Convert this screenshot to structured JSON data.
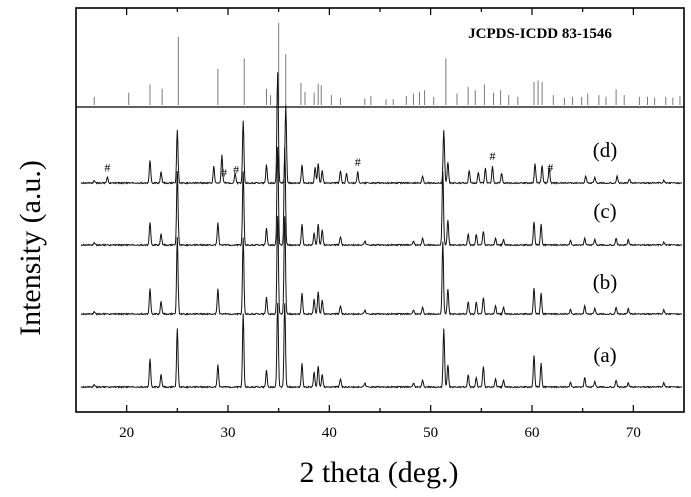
{
  "chart_data": {
    "type": "line",
    "xlabel": "2 theta (deg.)",
    "ylabel": "Intensity (a.u.)",
    "xlim": [
      15,
      75
    ],
    "x_ticks": [
      "20",
      "30",
      "40",
      "50",
      "60",
      "70"
    ],
    "grid": false,
    "reference": {
      "label": "JCPDS-ICDD 83-1546",
      "lines": [
        {
          "x": 16.8,
          "h": 0.1
        },
        {
          "x": 20.2,
          "h": 0.15
        },
        {
          "x": 22.3,
          "h": 0.25
        },
        {
          "x": 23.5,
          "h": 0.2
        },
        {
          "x": 25.1,
          "h": 0.83
        },
        {
          "x": 29.0,
          "h": 0.44
        },
        {
          "x": 31.6,
          "h": 0.57
        },
        {
          "x": 33.8,
          "h": 0.2
        },
        {
          "x": 34.2,
          "h": 0.12
        },
        {
          "x": 35.0,
          "h": 1.0
        },
        {
          "x": 35.7,
          "h": 0.62
        },
        {
          "x": 37.2,
          "h": 0.27
        },
        {
          "x": 37.6,
          "h": 0.16
        },
        {
          "x": 38.5,
          "h": 0.15
        },
        {
          "x": 38.9,
          "h": 0.26
        },
        {
          "x": 39.2,
          "h": 0.24
        },
        {
          "x": 40.2,
          "h": 0.12
        },
        {
          "x": 41.1,
          "h": 0.09
        },
        {
          "x": 43.5,
          "h": 0.08
        },
        {
          "x": 44.1,
          "h": 0.11
        },
        {
          "x": 45.6,
          "h": 0.07
        },
        {
          "x": 46.3,
          "h": 0.07
        },
        {
          "x": 47.6,
          "h": 0.11
        },
        {
          "x": 48.3,
          "h": 0.14
        },
        {
          "x": 48.9,
          "h": 0.16
        },
        {
          "x": 49.4,
          "h": 0.18
        },
        {
          "x": 50.3,
          "h": 0.1
        },
        {
          "x": 51.5,
          "h": 0.57
        },
        {
          "x": 52.6,
          "h": 0.14
        },
        {
          "x": 53.7,
          "h": 0.22
        },
        {
          "x": 54.4,
          "h": 0.18
        },
        {
          "x": 55.3,
          "h": 0.25
        },
        {
          "x": 56.2,
          "h": 0.15
        },
        {
          "x": 56.9,
          "h": 0.18
        },
        {
          "x": 57.7,
          "h": 0.12
        },
        {
          "x": 58.6,
          "h": 0.1
        },
        {
          "x": 60.2,
          "h": 0.28
        },
        {
          "x": 60.6,
          "h": 0.3
        },
        {
          "x": 61.0,
          "h": 0.28
        },
        {
          "x": 62.1,
          "h": 0.12
        },
        {
          "x": 63.2,
          "h": 0.09
        },
        {
          "x": 64.0,
          "h": 0.1
        },
        {
          "x": 64.9,
          "h": 0.1
        },
        {
          "x": 65.5,
          "h": 0.14
        },
        {
          "x": 66.6,
          "h": 0.12
        },
        {
          "x": 67.3,
          "h": 0.1
        },
        {
          "x": 68.3,
          "h": 0.19
        },
        {
          "x": 69.1,
          "h": 0.12
        },
        {
          "x": 70.6,
          "h": 0.1
        },
        {
          "x": 71.4,
          "h": 0.1
        },
        {
          "x": 72.1,
          "h": 0.09
        },
        {
          "x": 73.2,
          "h": 0.1
        },
        {
          "x": 73.9,
          "h": 0.09
        },
        {
          "x": 74.6,
          "h": 0.11
        }
      ]
    },
    "series": [
      {
        "name": "(a)",
        "peaks": [
          {
            "x": 16.8,
            "h": 0.02
          },
          {
            "x": 22.3,
            "h": 0.2
          },
          {
            "x": 23.4,
            "h": 0.09
          },
          {
            "x": 25.0,
            "h": 0.42
          },
          {
            "x": 29.0,
            "h": 0.16
          },
          {
            "x": 31.5,
            "h": 0.53
          },
          {
            "x": 33.8,
            "h": 0.12
          },
          {
            "x": 34.9,
            "h": 0.6
          },
          {
            "x": 35.6,
            "h": 0.6
          },
          {
            "x": 37.3,
            "h": 0.17
          },
          {
            "x": 38.5,
            "h": 0.11
          },
          {
            "x": 38.9,
            "h": 0.15
          },
          {
            "x": 39.3,
            "h": 0.09
          },
          {
            "x": 41.1,
            "h": 0.06
          },
          {
            "x": 43.5,
            "h": 0.03
          },
          {
            "x": 48.3,
            "h": 0.03
          },
          {
            "x": 49.2,
            "h": 0.05
          },
          {
            "x": 51.3,
            "h": 0.42
          },
          {
            "x": 51.7,
            "h": 0.16
          },
          {
            "x": 53.7,
            "h": 0.09
          },
          {
            "x": 54.5,
            "h": 0.07
          },
          {
            "x": 55.2,
            "h": 0.15
          },
          {
            "x": 56.4,
            "h": 0.06
          },
          {
            "x": 57.2,
            "h": 0.05
          },
          {
            "x": 60.2,
            "h": 0.23
          },
          {
            "x": 60.9,
            "h": 0.17
          },
          {
            "x": 63.8,
            "h": 0.03
          },
          {
            "x": 65.2,
            "h": 0.07
          },
          {
            "x": 66.2,
            "h": 0.04
          },
          {
            "x": 68.3,
            "h": 0.05
          },
          {
            "x": 69.5,
            "h": 0.03
          },
          {
            "x": 73.0,
            "h": 0.03
          }
        ]
      },
      {
        "name": "(b)",
        "peaks": [
          {
            "x": 16.8,
            "h": 0.02
          },
          {
            "x": 22.3,
            "h": 0.18
          },
          {
            "x": 23.4,
            "h": 0.09
          },
          {
            "x": 25.0,
            "h": 0.55
          },
          {
            "x": 29.0,
            "h": 0.18
          },
          {
            "x": 31.5,
            "h": 0.55
          },
          {
            "x": 33.8,
            "h": 0.12
          },
          {
            "x": 34.9,
            "h": 0.7
          },
          {
            "x": 35.6,
            "h": 0.7
          },
          {
            "x": 37.3,
            "h": 0.15
          },
          {
            "x": 38.5,
            "h": 0.11
          },
          {
            "x": 38.9,
            "h": 0.16
          },
          {
            "x": 39.3,
            "h": 0.1
          },
          {
            "x": 41.1,
            "h": 0.06
          },
          {
            "x": 43.5,
            "h": 0.03
          },
          {
            "x": 48.3,
            "h": 0.03
          },
          {
            "x": 49.2,
            "h": 0.05
          },
          {
            "x": 51.2,
            "h": 0.52
          },
          {
            "x": 51.7,
            "h": 0.18
          },
          {
            "x": 53.7,
            "h": 0.09
          },
          {
            "x": 54.5,
            "h": 0.09
          },
          {
            "x": 55.2,
            "h": 0.12
          },
          {
            "x": 56.4,
            "h": 0.06
          },
          {
            "x": 57.2,
            "h": 0.05
          },
          {
            "x": 60.2,
            "h": 0.19
          },
          {
            "x": 60.9,
            "h": 0.15
          },
          {
            "x": 63.8,
            "h": 0.03
          },
          {
            "x": 65.2,
            "h": 0.06
          },
          {
            "x": 66.2,
            "h": 0.04
          },
          {
            "x": 68.3,
            "h": 0.05
          },
          {
            "x": 69.5,
            "h": 0.04
          },
          {
            "x": 73.0,
            "h": 0.03
          }
        ]
      },
      {
        "name": "(c)",
        "peaks": [
          {
            "x": 16.8,
            "h": 0.02
          },
          {
            "x": 22.3,
            "h": 0.16
          },
          {
            "x": 23.4,
            "h": 0.08
          },
          {
            "x": 25.0,
            "h": 0.53
          },
          {
            "x": 29.0,
            "h": 0.16
          },
          {
            "x": 31.5,
            "h": 0.53
          },
          {
            "x": 33.8,
            "h": 0.12
          },
          {
            "x": 34.9,
            "h": 0.7
          },
          {
            "x": 35.6,
            "h": 0.7
          },
          {
            "x": 37.3,
            "h": 0.15
          },
          {
            "x": 38.5,
            "h": 0.09
          },
          {
            "x": 38.9,
            "h": 0.15
          },
          {
            "x": 39.3,
            "h": 0.11
          },
          {
            "x": 41.1,
            "h": 0.06
          },
          {
            "x": 43.5,
            "h": 0.03
          },
          {
            "x": 48.3,
            "h": 0.03
          },
          {
            "x": 49.2,
            "h": 0.05
          },
          {
            "x": 51.2,
            "h": 0.53
          },
          {
            "x": 51.7,
            "h": 0.18
          },
          {
            "x": 53.7,
            "h": 0.08
          },
          {
            "x": 54.5,
            "h": 0.08
          },
          {
            "x": 55.2,
            "h": 0.1
          },
          {
            "x": 56.4,
            "h": 0.05
          },
          {
            "x": 57.2,
            "h": 0.04
          },
          {
            "x": 60.2,
            "h": 0.17
          },
          {
            "x": 60.9,
            "h": 0.15
          },
          {
            "x": 63.8,
            "h": 0.03
          },
          {
            "x": 65.2,
            "h": 0.05
          },
          {
            "x": 66.2,
            "h": 0.04
          },
          {
            "x": 68.3,
            "h": 0.05
          },
          {
            "x": 69.5,
            "h": 0.04
          },
          {
            "x": 73.0,
            "h": 0.02
          }
        ]
      },
      {
        "name": "(d)",
        "peaks": [
          {
            "x": 16.8,
            "h": 0.02
          },
          {
            "x": 18.1,
            "h": 0.04
          },
          {
            "x": 22.3,
            "h": 0.16
          },
          {
            "x": 23.4,
            "h": 0.08
          },
          {
            "x": 25.0,
            "h": 0.38
          },
          {
            "x": 28.6,
            "h": 0.12
          },
          {
            "x": 29.4,
            "h": 0.2
          },
          {
            "x": 30.7,
            "h": 0.07
          },
          {
            "x": 31.5,
            "h": 0.45
          },
          {
            "x": 33.8,
            "h": 0.13
          },
          {
            "x": 34.9,
            "h": 0.79
          },
          {
            "x": 35.7,
            "h": 0.56
          },
          {
            "x": 37.3,
            "h": 0.13
          },
          {
            "x": 38.6,
            "h": 0.11
          },
          {
            "x": 38.9,
            "h": 0.14
          },
          {
            "x": 39.3,
            "h": 0.09
          },
          {
            "x": 41.1,
            "h": 0.09
          },
          {
            "x": 41.7,
            "h": 0.07
          },
          {
            "x": 42.8,
            "h": 0.08
          },
          {
            "x": 49.2,
            "h": 0.05
          },
          {
            "x": 51.3,
            "h": 0.38
          },
          {
            "x": 51.7,
            "h": 0.15
          },
          {
            "x": 53.8,
            "h": 0.09
          },
          {
            "x": 54.7,
            "h": 0.08
          },
          {
            "x": 55.4,
            "h": 0.11
          },
          {
            "x": 56.1,
            "h": 0.12
          },
          {
            "x": 57.0,
            "h": 0.07
          },
          {
            "x": 60.3,
            "h": 0.14
          },
          {
            "x": 61.0,
            "h": 0.13
          },
          {
            "x": 61.7,
            "h": 0.11
          },
          {
            "x": 65.3,
            "h": 0.05
          },
          {
            "x": 66.2,
            "h": 0.04
          },
          {
            "x": 68.4,
            "h": 0.05
          },
          {
            "x": 69.6,
            "h": 0.03
          },
          {
            "x": 73.0,
            "h": 0.02
          }
        ]
      }
    ],
    "impurity_markers": {
      "symbol": "#",
      "series": "(d)",
      "x": [
        18.1,
        29.6,
        30.8,
        42.8,
        56.1,
        61.8
      ]
    }
  }
}
